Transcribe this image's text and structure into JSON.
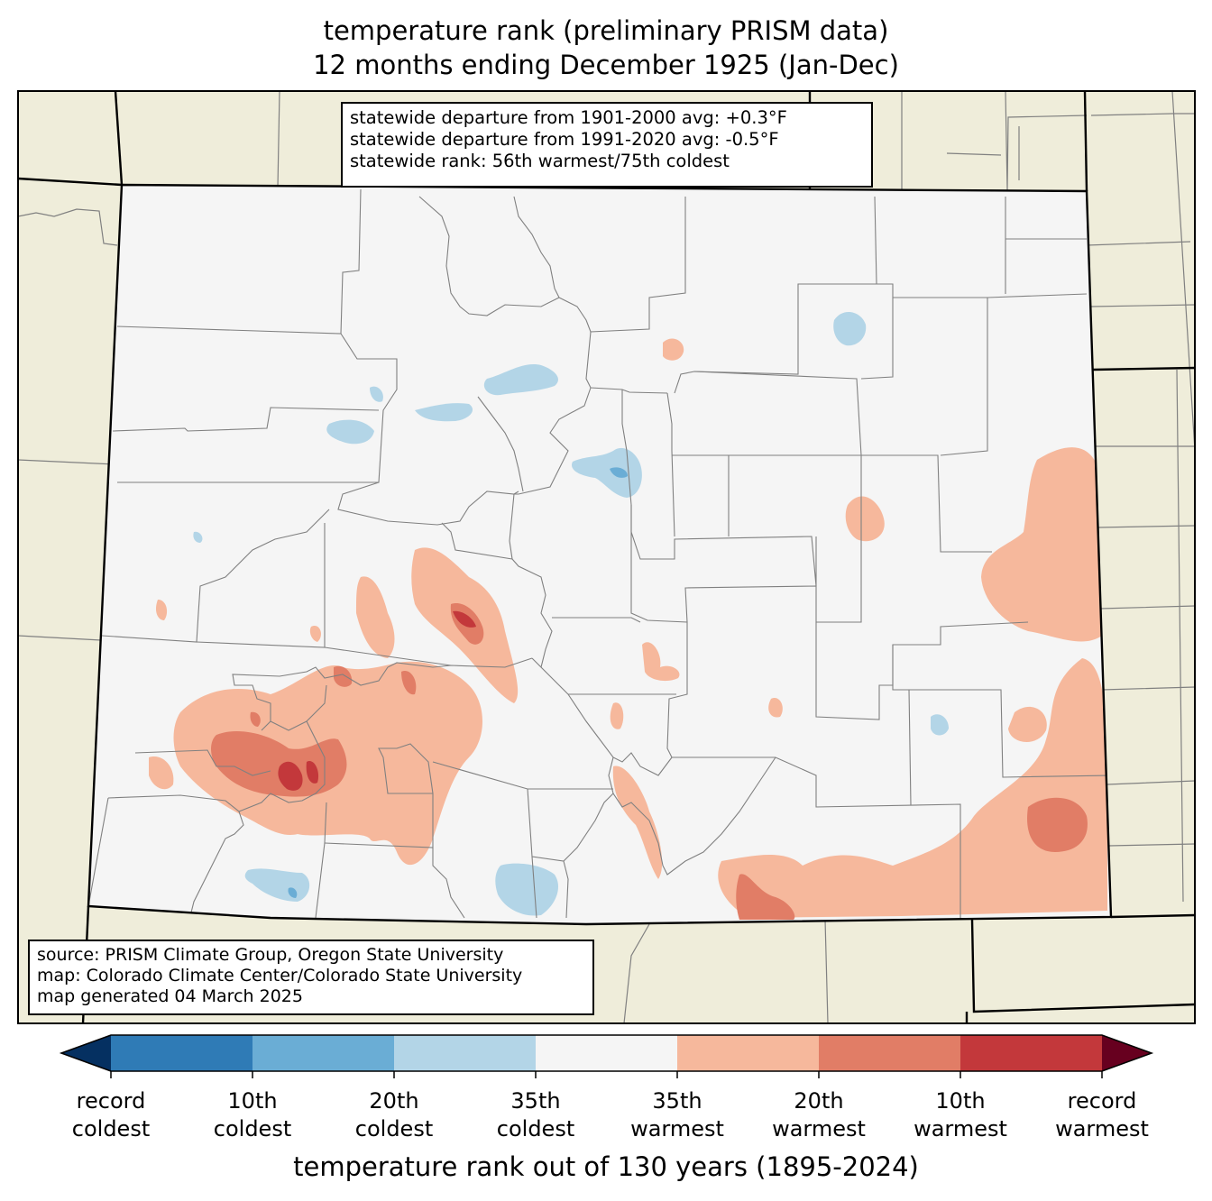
{
  "title": {
    "line1": "temperature rank (preliminary PRISM data)",
    "line2": "12 months ending December 1925 (Jan-Dec)"
  },
  "stats": {
    "line1": "statewide departure from 1901-2000 avg: +0.3°F",
    "line2": "statewide departure from 1991-2020 avg: -0.5°F",
    "line3": "statewide rank: 56th warmest/75th coldest"
  },
  "source": {
    "line1": "source: PRISM Climate Group, Oregon State University",
    "line2": "map: Colorado Climate Center/Colorado State University",
    "line3": "map generated 04 March 2025"
  },
  "colors": {
    "land": "#efedda",
    "state_fill": "#f5f5f5",
    "county_line": "#808080",
    "state_line": "#000000",
    "bins": [
      "#053061",
      "#2f7bb6",
      "#6aadd5",
      "#b3d5e7",
      "#f5f5f5",
      "#f6b89c",
      "#e17d66",
      "#c3383b",
      "#67001f"
    ]
  },
  "colorbar": {
    "labels": [
      {
        "top": "record",
        "bottom": "coldest"
      },
      {
        "top": "10th",
        "bottom": "coldest"
      },
      {
        "top": "20th",
        "bottom": "coldest"
      },
      {
        "top": "35th",
        "bottom": "coldest"
      },
      {
        "top": "35th",
        "bottom": "warmest"
      },
      {
        "top": "20th",
        "bottom": "warmest"
      },
      {
        "top": "10th",
        "bottom": "warmest"
      },
      {
        "top": "record",
        "bottom": "warmest"
      }
    ],
    "title": "temperature rank out of 130 years (1895-2024)"
  }
}
